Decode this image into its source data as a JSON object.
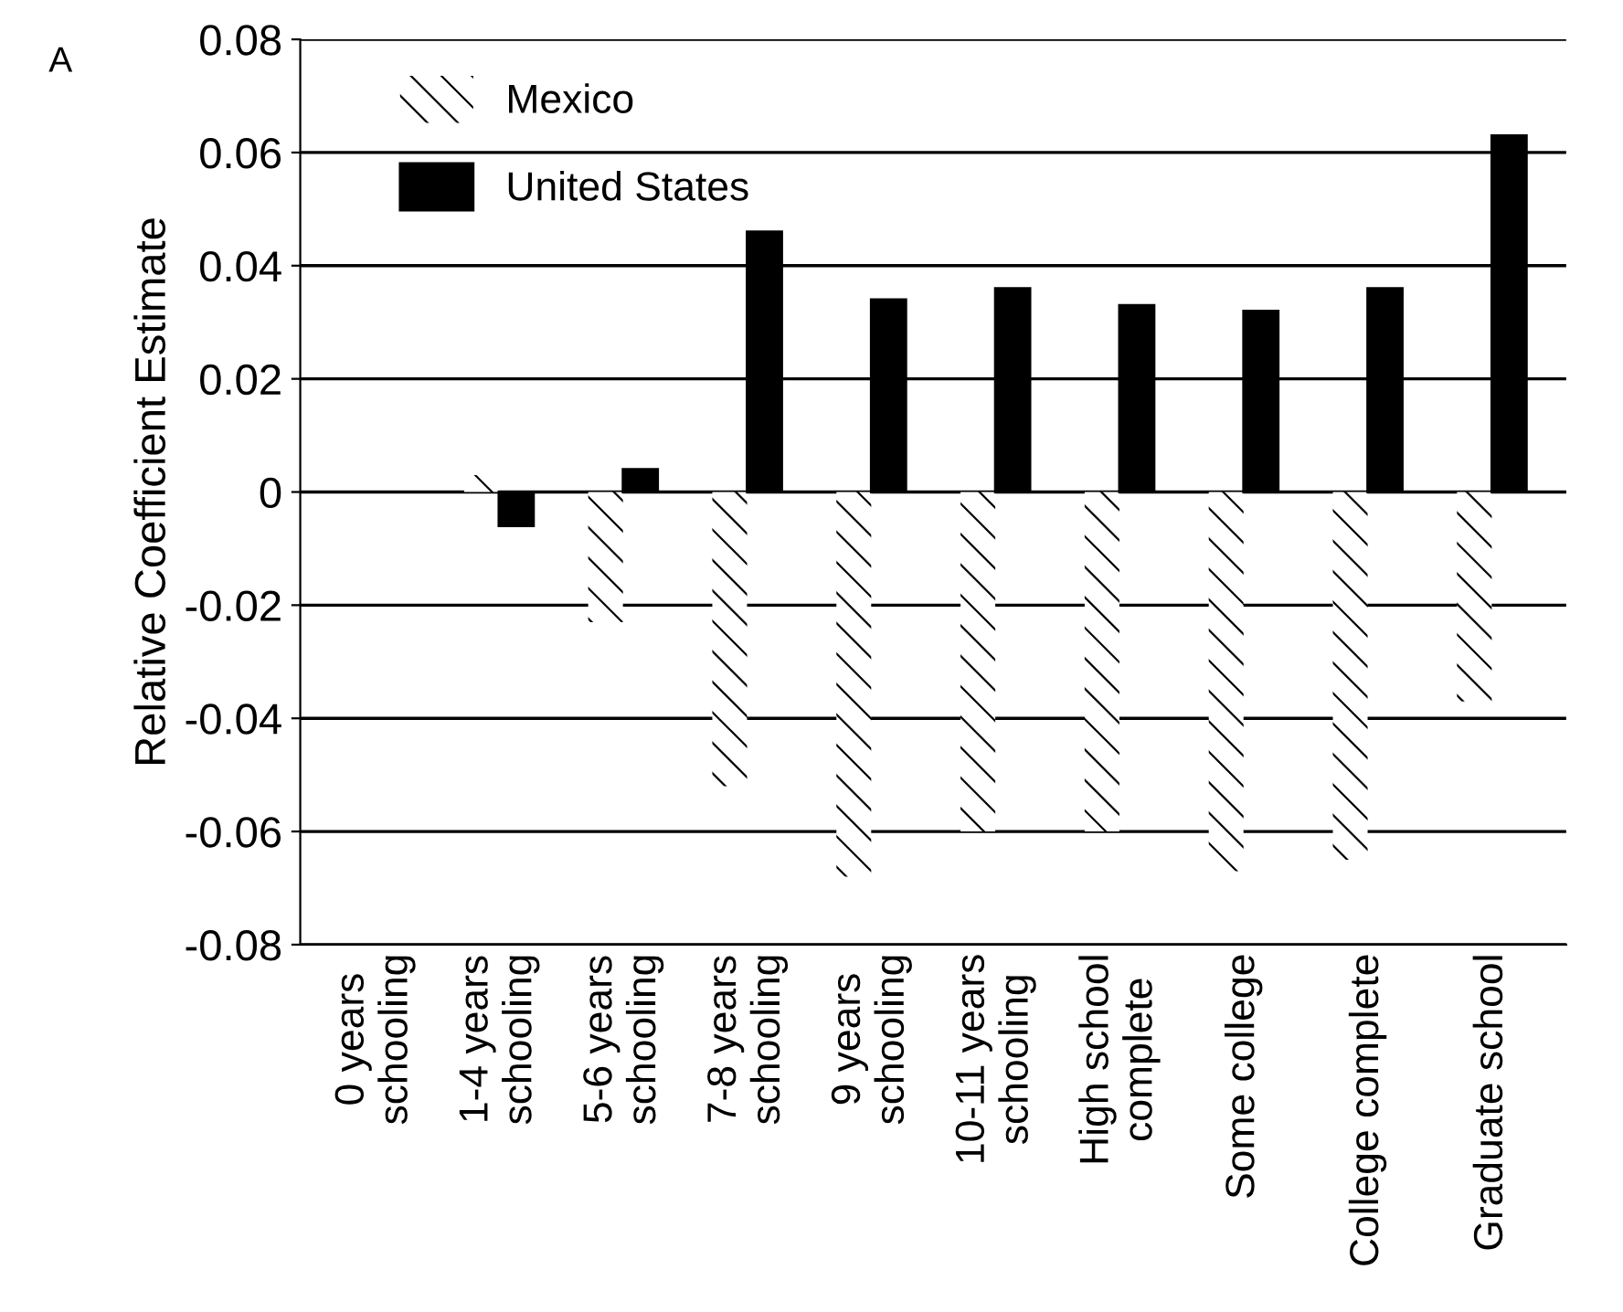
{
  "chart_data": {
    "type": "bar",
    "ylabel": "Relative Coefficient Estimate",
    "categories": [
      "0 years\nschooling",
      "1-4 years\nschooling",
      "5-6 years\nschooling",
      "7-8 years\nschooling",
      "9 years\nschooling",
      "10-11 years\nschooling",
      "High school\ncomplete",
      "Some college",
      "College complete",
      "Graduate school"
    ],
    "series": [
      {
        "name": "Mexico",
        "color": "#ffffff",
        "values": [
          null,
          0.003,
          -0.023,
          -0.052,
          -0.068,
          -0.06,
          -0.06,
          -0.067,
          -0.065,
          -0.037
        ]
      },
      {
        "name": "United States",
        "color": "#000000",
        "values": [
          null,
          -0.006,
          0.004,
          0.046,
          0.034,
          0.036,
          0.033,
          0.032,
          0.036,
          0.063
        ]
      }
    ],
    "ylim": [
      -0.08,
      0.08
    ],
    "yticks": [
      -0.08,
      -0.06,
      -0.04,
      -0.02,
      0,
      0.02,
      0.04,
      0.06,
      0.08
    ],
    "grid": "y",
    "legend": "top left",
    "annotations": [
      "A"
    ]
  }
}
